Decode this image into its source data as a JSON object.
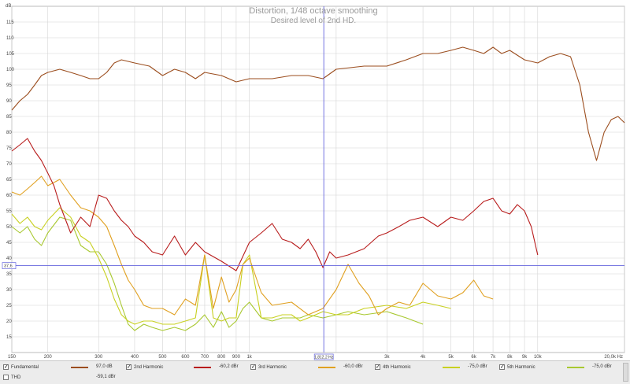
{
  "title": "Distortion, 1/48 octave smoothing",
  "subtitle": "Desired level of 2nd HD.",
  "y_unit": "dB",
  "x_unit": "Hz",
  "colors": {
    "fundamental": "#9b4d1e",
    "h2": "#b81c1c",
    "h3": "#e0a020",
    "h4": "#c8d020",
    "h5": "#a8c830",
    "cursor": "#6666dd",
    "grid": "#d4d4d4"
  },
  "cursor": {
    "x_label": "1,812,2 Hz",
    "y_label": "37,6"
  },
  "legend": [
    {
      "name": "Fundamental",
      "checked": true,
      "value": "97,0 dB",
      "color": "#9b4d1e"
    },
    {
      "name": "2nd Harmonic",
      "checked": true,
      "value": "-60,2 dBr",
      "color": "#b81c1c"
    },
    {
      "name": "3rd Harmonic",
      "checked": true,
      "value": "-60,0 dBr",
      "color": "#e0a020"
    },
    {
      "name": "4th Harmonic",
      "checked": true,
      "value": "-75,0 dBr",
      "color": "#c8d020"
    },
    {
      "name": "5th Harmonic",
      "checked": true,
      "value": "-75,0 dBr",
      "color": "#a8c830"
    },
    {
      "name": "THD",
      "checked": false,
      "value": "-59,1 dBr",
      "color": "#888888"
    }
  ],
  "chart_data": {
    "type": "line",
    "title": "Distortion, 1/48 octave smoothing",
    "subtitle": "Desired level of 2nd HD.",
    "ylabel": "dB",
    "xlabel": "Hz",
    "x_scale": "log",
    "xlim": [
      150,
      20000
    ],
    "ylim": [
      10,
      120
    ],
    "grid": true,
    "x_ticks": [
      150,
      200,
      300,
      400,
      500,
      600,
      700,
      800,
      900,
      1000,
      2000,
      3000,
      4000,
      5000,
      6000,
      7000,
      8000,
      9000,
      10000,
      20000
    ],
    "x_tick_labels": [
      "150",
      "200",
      "300",
      "400",
      "500",
      "600",
      "700",
      "800",
      "900",
      "1k",
      "",
      "3k",
      "4k",
      "5k",
      "6k",
      "7k",
      "8k",
      "9k",
      "10k",
      "20,0k Hz"
    ],
    "y_ticks": [
      15,
      20,
      25,
      30,
      35,
      40,
      45,
      50,
      55,
      60,
      65,
      70,
      75,
      80,
      85,
      90,
      95,
      100,
      105,
      110,
      115
    ],
    "reference_line": {
      "x": 1812,
      "y": 37.6
    },
    "series": [
      {
        "name": "Fundamental",
        "color": "#9b4d1e",
        "x": [
          150,
          160,
          170,
          180,
          190,
          200,
          220,
          240,
          260,
          280,
          300,
          320,
          340,
          360,
          400,
          450,
          500,
          550,
          600,
          650,
          700,
          800,
          900,
          1000,
          1200,
          1400,
          1600,
          1800,
          2000,
          2500,
          3000,
          3500,
          4000,
          4500,
          5000,
          5500,
          6000,
          6500,
          7000,
          7500,
          8000,
          9000,
          10000,
          11000,
          12000,
          13000,
          14000,
          15000,
          16000,
          17000,
          18000,
          19000,
          20000
        ],
        "y": [
          87,
          90,
          92,
          95,
          98,
          99,
          100,
          99,
          98,
          97,
          97,
          99,
          102,
          103,
          102,
          101,
          98,
          100,
          99,
          97,
          99,
          98,
          96,
          97,
          97,
          98,
          98,
          97,
          100,
          101,
          101,
          103,
          105,
          105,
          106,
          107,
          106,
          105,
          107,
          105,
          106,
          103,
          102,
          104,
          105,
          104,
          95,
          80,
          71,
          80,
          84,
          85,
          83
        ]
      },
      {
        "name": "2nd Harmonic",
        "color": "#b81c1c",
        "x": [
          150,
          160,
          170,
          180,
          190,
          200,
          210,
          220,
          240,
          260,
          280,
          300,
          320,
          340,
          360,
          380,
          400,
          430,
          460,
          500,
          550,
          600,
          650,
          700,
          800,
          900,
          1000,
          1100,
          1200,
          1300,
          1400,
          1500,
          1600,
          1700,
          1800,
          1900,
          2000,
          2200,
          2500,
          2800,
          3000,
          3300,
          3600,
          4000,
          4500,
          5000,
          5500,
          6000,
          6500,
          7000,
          7500,
          8000,
          8500,
          9000,
          9500,
          10000
        ],
        "y": [
          74,
          76,
          78,
          74,
          71,
          67,
          63,
          57,
          48,
          53,
          50,
          60,
          59,
          55,
          52,
          50,
          47,
          45,
          42,
          41,
          47,
          41,
          45,
          42,
          39,
          36,
          45,
          48,
          51,
          46,
          45,
          43,
          46,
          42,
          37,
          42,
          40,
          41,
          43,
          47,
          48,
          50,
          52,
          53,
          50,
          53,
          52,
          55,
          58,
          59,
          55,
          54,
          57,
          55,
          50,
          41
        ]
      },
      {
        "name": "3rd Harmonic",
        "color": "#e0a020",
        "x": [
          150,
          160,
          170,
          180,
          190,
          200,
          220,
          240,
          260,
          280,
          300,
          320,
          340,
          360,
          380,
          400,
          430,
          460,
          500,
          550,
          600,
          650,
          700,
          750,
          800,
          850,
          900,
          950,
          1000,
          1100,
          1200,
          1400,
          1600,
          1800,
          2000,
          2200,
          2400,
          2600,
          2800,
          3000,
          3300,
          3600,
          4000,
          4500,
          5000,
          5500,
          6000,
          6500,
          7000
        ],
        "y": [
          61,
          60,
          62,
          64,
          66,
          63,
          65,
          60,
          56,
          55,
          53,
          50,
          44,
          38,
          33,
          30,
          25,
          24,
          24,
          22,
          27,
          25,
          41,
          24,
          34,
          26,
          30,
          38,
          40,
          29,
          25,
          26,
          22,
          24,
          30,
          38,
          32,
          28,
          22,
          24,
          26,
          25,
          32,
          28,
          27,
          29,
          33,
          28,
          27
        ]
      },
      {
        "name": "4th Harmonic",
        "color": "#c8d020",
        "x": [
          150,
          160,
          170,
          180,
          190,
          200,
          220,
          240,
          260,
          280,
          300,
          320,
          340,
          360,
          380,
          400,
          430,
          460,
          500,
          550,
          600,
          650,
          700,
          750,
          800,
          850,
          900,
          950,
          1000,
          1100,
          1200,
          1300,
          1400,
          1500,
          1600,
          1800,
          2000,
          2200,
          2500,
          3000,
          3500,
          4000,
          4500,
          5000
        ],
        "y": [
          54,
          51,
          53,
          50,
          49,
          52,
          56,
          53,
          47,
          45,
          40,
          34,
          27,
          22,
          20,
          19,
          20,
          20,
          19,
          19,
          20,
          21,
          41,
          21,
          20,
          21,
          21,
          38,
          41,
          21,
          21,
          22,
          22,
          20,
          21,
          23,
          22,
          22,
          24,
          25,
          24,
          26,
          25,
          24
        ]
      },
      {
        "name": "5th Harmonic",
        "color": "#a8c830",
        "x": [
          150,
          160,
          170,
          180,
          190,
          200,
          220,
          240,
          260,
          280,
          300,
          320,
          340,
          360,
          380,
          400,
          430,
          460,
          500,
          550,
          600,
          650,
          700,
          750,
          800,
          850,
          900,
          950,
          1000,
          1100,
          1200,
          1300,
          1400,
          1500,
          1600,
          1800,
          2000,
          2200,
          2500,
          3000,
          3500,
          4000
        ],
        "y": [
          50,
          48,
          50,
          46,
          44,
          48,
          53,
          52,
          44,
          42,
          42,
          38,
          32,
          25,
          19,
          17,
          19,
          18,
          17,
          18,
          17,
          19,
          22,
          18,
          23,
          18,
          20,
          24,
          26,
          21,
          20,
          21,
          21,
          21,
          22,
          21,
          22,
          23,
          22,
          23,
          21,
          19
        ]
      }
    ]
  }
}
